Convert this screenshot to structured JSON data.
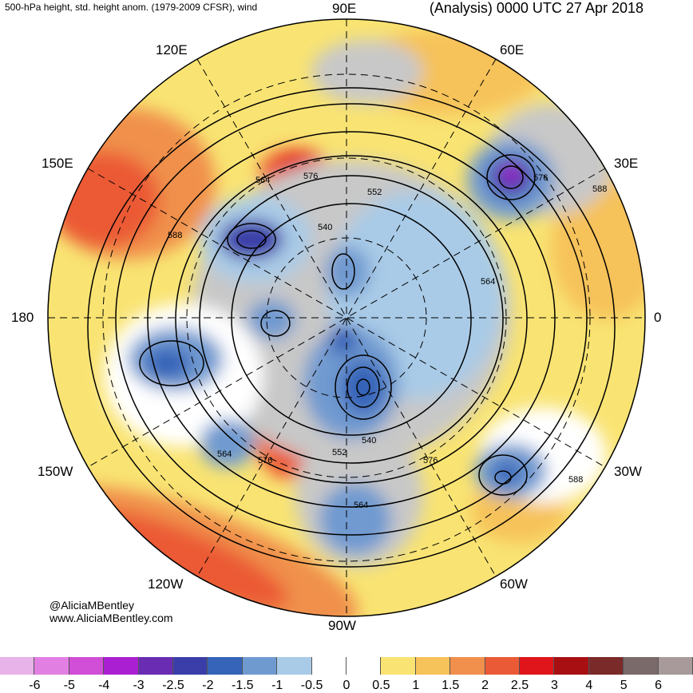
{
  "title": {
    "left": "500-hPa height, std. height anom. (1979-2009 CFSR), wind",
    "right": "(Analysis) 0000 UTC 27 Apr 2018"
  },
  "map": {
    "projection": "north polar stereographic",
    "longitude_labels": {
      "lon_90E": "90E",
      "lon_120E": "120E",
      "lon_60E": "60E",
      "lon_150E": "150E",
      "lon_30E": "30E",
      "lon_180": "180",
      "lon_0": "0",
      "lon_150W": "150W",
      "lon_30W": "30W",
      "lon_120W": "120W",
      "lon_60W": "60W",
      "lon_90W": "90W"
    },
    "contour_labels": [
      "564",
      "576",
      "552",
      "588",
      "540",
      "576",
      "588",
      "564",
      "540",
      "552",
      "576",
      "564",
      "576",
      "588",
      "564"
    ],
    "colors": {
      "ocean_gray": "#c8c8c8",
      "neg_light": "#a9cbe7",
      "neg_mid": "#6f9ad0",
      "neg_strong": "#3d67b5",
      "neg_max": "#6a2cb3",
      "pos_low": "#f9e473",
      "pos_mid": "#f6c25a",
      "pos_high": "#f0904c",
      "pos_max": "#e0553a"
    }
  },
  "credits": {
    "handle": "@AliciaMBentley",
    "website": "www.AliciaMBentley.com"
  },
  "colorbar": {
    "colors": [
      "#e8b3e8",
      "#e27fe2",
      "#d04fd6",
      "#ab1fd3",
      "#6a2cb3",
      "#3b3ea8",
      "#3564b8",
      "#6f9ad0",
      "#a9cbe7",
      "#ffffff",
      "#ffffff",
      "#f9e473",
      "#f6c25a",
      "#f0904c",
      "#eb5a36",
      "#e0141b",
      "#a80f12",
      "#7b2a2a",
      "#7a6a6a",
      "#a89a9a"
    ],
    "ticks": [
      "-6",
      "-5",
      "-4",
      "-3",
      "-2.5",
      "-2",
      "-1.5",
      "-1",
      "-0.5",
      "0",
      "0.5",
      "1",
      "1.5",
      "2",
      "2.5",
      "3",
      "4",
      "5",
      "6"
    ]
  }
}
